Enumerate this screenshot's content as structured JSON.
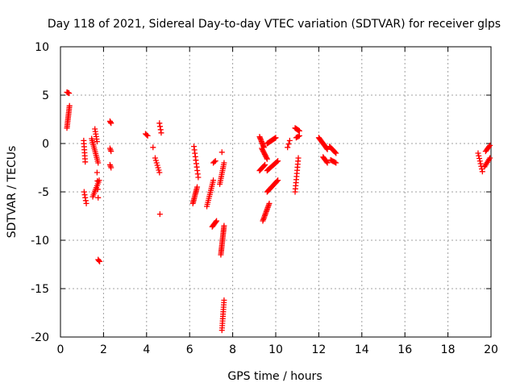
{
  "chart_data": {
    "type": "scatter",
    "title": "Day 118 of 2021, Sidereal Day-to-day VTEC variation (SDTVAR) for receiver glps",
    "xlabel": "GPS time / hours",
    "ylabel": "SDTVAR / TECUs",
    "xlim": [
      0,
      20
    ],
    "ylim": [
      -20,
      10
    ],
    "x_ticks": [
      0,
      2,
      4,
      6,
      8,
      10,
      12,
      14,
      16,
      18,
      20
    ],
    "y_ticks": [
      -20,
      -15,
      -10,
      -5,
      0,
      5,
      10
    ],
    "grid": true,
    "marker": "+",
    "color": "#ff0000",
    "segments": [
      {
        "x0": 0.3,
        "x1": 0.4,
        "y0": 5.3,
        "y1": 5.2,
        "n": 4
      },
      {
        "x0": 0.3,
        "x1": 0.42,
        "y0": 1.6,
        "y1": 3.9,
        "n": 14
      },
      {
        "x0": 1.08,
        "x1": 1.15,
        "y0": 0.3,
        "y1": -1.9,
        "n": 8
      },
      {
        "x0": 1.1,
        "x1": 1.2,
        "y0": -5.0,
        "y1": -6.2,
        "n": 5
      },
      {
        "x0": 1.45,
        "x1": 1.75,
        "y0": 0.5,
        "y1": -2.0,
        "n": 14
      },
      {
        "x0": 1.5,
        "x1": 1.8,
        "y0": -5.5,
        "y1": -3.8,
        "n": 10
      },
      {
        "x0": 1.6,
        "x1": 1.7,
        "y0": 1.5,
        "y1": 0.2,
        "n": 6
      },
      {
        "x0": 1.7,
        "x1": 1.75,
        "y0": -3.0,
        "y1": -5.6,
        "n": 4
      },
      {
        "x0": 1.75,
        "x1": 1.82,
        "y0": -12.0,
        "y1": -12.2,
        "n": 3
      },
      {
        "x0": 2.3,
        "x1": 2.35,
        "y0": 2.3,
        "y1": 2.1,
        "n": 3
      },
      {
        "x0": 2.3,
        "x1": 2.35,
        "y0": -0.5,
        "y1": -0.8,
        "n": 3
      },
      {
        "x0": 2.3,
        "x1": 2.35,
        "y0": -2.2,
        "y1": -2.5,
        "n": 3
      },
      {
        "x0": 3.95,
        "x1": 4.05,
        "y0": 1.0,
        "y1": 0.8,
        "n": 3
      },
      {
        "x0": 4.3,
        "x1": 4.3,
        "y0": -0.4,
        "y1": -0.4,
        "n": 1
      },
      {
        "x0": 4.4,
        "x1": 4.6,
        "y0": -1.5,
        "y1": -3.0,
        "n": 7
      },
      {
        "x0": 4.6,
        "x1": 4.68,
        "y0": 2.1,
        "y1": 1.1,
        "n": 4
      },
      {
        "x0": 4.62,
        "x1": 4.62,
        "y0": -7.3,
        "y1": -7.3,
        "n": 1
      },
      {
        "x0": 6.2,
        "x1": 6.4,
        "y0": -0.3,
        "y1": -3.5,
        "n": 10
      },
      {
        "x0": 6.15,
        "x1": 6.35,
        "y0": -6.2,
        "y1": -4.5,
        "n": 12
      },
      {
        "x0": 6.8,
        "x1": 7.1,
        "y0": -6.5,
        "y1": -3.8,
        "n": 14
      },
      {
        "x0": 7.05,
        "x1": 7.25,
        "y0": -8.6,
        "y1": -8.0,
        "n": 7
      },
      {
        "x0": 7.1,
        "x1": 7.2,
        "y0": -2.0,
        "y1": -1.8,
        "n": 3
      },
      {
        "x0": 7.4,
        "x1": 7.6,
        "y0": -4.2,
        "y1": -2.0,
        "n": 12
      },
      {
        "x0": 7.5,
        "x1": 7.5,
        "y0": -0.9,
        "y1": -0.9,
        "n": 1
      },
      {
        "x0": 7.45,
        "x1": 7.6,
        "y0": -11.5,
        "y1": -8.5,
        "n": 20
      },
      {
        "x0": 7.5,
        "x1": 7.6,
        "y0": -19.3,
        "y1": -16.2,
        "n": 14
      },
      {
        "x0": 9.25,
        "x1": 9.45,
        "y0": 0.7,
        "y1": -0.4,
        "n": 10
      },
      {
        "x0": 9.35,
        "x1": 9.6,
        "y0": -0.5,
        "y1": -1.6,
        "n": 10
      },
      {
        "x0": 9.25,
        "x1": 9.5,
        "y0": -2.8,
        "y1": -2.2,
        "n": 8
      },
      {
        "x0": 9.4,
        "x1": 9.7,
        "y0": -8.0,
        "y1": -6.2,
        "n": 14
      },
      {
        "x0": 9.6,
        "x1": 10.0,
        "y0": 0.0,
        "y1": 0.6,
        "n": 12
      },
      {
        "x0": 9.6,
        "x1": 10.1,
        "y0": -2.8,
        "y1": -1.8,
        "n": 14
      },
      {
        "x0": 9.6,
        "x1": 10.1,
        "y0": -5.0,
        "y1": -3.8,
        "n": 14
      },
      {
        "x0": 10.55,
        "x1": 10.65,
        "y0": -0.4,
        "y1": 0.3,
        "n": 3
      },
      {
        "x0": 10.9,
        "x1": 11.1,
        "y0": 1.6,
        "y1": 1.3,
        "n": 7
      },
      {
        "x0": 10.95,
        "x1": 11.1,
        "y0": 0.6,
        "y1": 0.8,
        "n": 4
      },
      {
        "x0": 10.9,
        "x1": 11.05,
        "y0": -5.0,
        "y1": -1.5,
        "n": 12
      },
      {
        "x0": 12.0,
        "x1": 12.4,
        "y0": 0.6,
        "y1": -0.6,
        "n": 14
      },
      {
        "x0": 12.2,
        "x1": 12.4,
        "y0": -1.4,
        "y1": -2.0,
        "n": 7
      },
      {
        "x0": 12.5,
        "x1": 12.8,
        "y0": -0.3,
        "y1": -1.0,
        "n": 8
      },
      {
        "x0": 12.55,
        "x1": 12.8,
        "y0": -1.7,
        "y1": -2.0,
        "n": 6
      },
      {
        "x0": 19.4,
        "x1": 19.6,
        "y0": -1.0,
        "y1": -2.9,
        "n": 8
      },
      {
        "x0": 19.75,
        "x1": 19.95,
        "y0": -0.8,
        "y1": -0.2,
        "n": 6
      },
      {
        "x0": 19.7,
        "x1": 19.95,
        "y0": -2.4,
        "y1": -1.5,
        "n": 7
      }
    ]
  }
}
